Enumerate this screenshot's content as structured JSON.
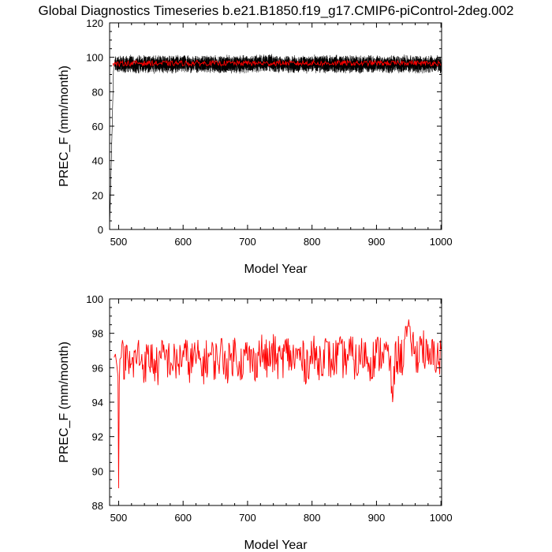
{
  "title": "Global Diagnostics Timeseries b.e21.B1850.f19_g17.CMIP6-piControl-2deg.002",
  "chart_data": [
    {
      "type": "line",
      "xlabel": "Model Year",
      "ylabel": "PREC_F (mm/month)",
      "xlim": [
        486,
        1001
      ],
      "ylim": [
        0,
        120
      ],
      "xticks": [
        500,
        600,
        700,
        800,
        900,
        1000
      ],
      "yticks": [
        0,
        20,
        40,
        60,
        80,
        100,
        120
      ],
      "grid": false,
      "series": [
        {
          "color": "#000000",
          "kind": "monthly",
          "x": [
            486.0,
            490.0,
            492.0,
            494.0,
            500.0,
            530.0,
            560.0,
            600.0,
            650.0,
            700.0,
            725.0,
            750.0,
            800.0,
            850.0,
            900.0,
            950.0,
            1000.0
          ],
          "y": [
            0.0,
            60.0,
            92.0,
            96.0,
            96.0,
            96.0,
            96.0,
            96.0,
            96.0,
            96.0,
            97.0,
            96.0,
            96.0,
            96.0,
            96.0,
            96.0,
            96.0
          ],
          "range_min": 86,
          "range_max": 104
        },
        {
          "color": "#ff0000",
          "kind": "annual",
          "x": [
            491,
            500,
            510,
            520,
            530,
            540,
            550,
            560,
            570,
            580,
            590,
            600,
            610,
            620,
            630,
            640,
            650,
            660,
            670,
            680,
            690,
            700,
            710,
            720,
            730,
            740,
            750,
            760,
            770,
            780,
            790,
            800,
            810,
            820,
            830,
            840,
            850,
            860,
            870,
            880,
            890,
            900,
            910,
            920,
            930,
            940,
            950,
            960,
            970,
            980,
            990,
            1000
          ],
          "y": [
            96.5,
            96.0,
            96.6,
            96.4,
            96.8,
            96.5,
            96.7,
            96.4,
            96.6,
            96.3,
            96.5,
            96.6,
            96.4,
            96.7,
            96.5,
            96.6,
            96.4,
            96.5,
            96.7,
            96.6,
            96.4,
            96.8,
            96.5,
            96.6,
            96.4,
            96.5,
            96.7,
            96.6,
            96.4,
            96.5,
            96.6,
            96.7,
            96.5,
            96.4,
            96.6,
            96.5,
            96.7,
            96.6,
            96.4,
            96.5,
            96.6,
            96.7,
            96.5,
            96.6,
            96.4,
            96.8,
            97.0,
            96.7,
            96.5,
            96.6,
            96.5,
            96.6
          ]
        }
      ]
    },
    {
      "type": "line",
      "xlabel": "Model Year",
      "ylabel": "PREC_F (mm/month)",
      "xlim": [
        486,
        1001
      ],
      "ylim": [
        88,
        100
      ],
      "xticks": [
        500,
        600,
        700,
        800,
        900,
        1000
      ],
      "yticks": [
        88,
        90,
        92,
        94,
        96,
        98,
        100
      ],
      "grid": false,
      "series": [
        {
          "color": "#ff0000",
          "x": [
            493,
            495,
            497,
            499,
            500,
            501,
            502,
            504,
            510,
            520,
            530,
            540,
            550,
            560,
            570,
            580,
            590,
            600,
            610,
            620,
            630,
            640,
            650,
            660,
            670,
            680,
            690,
            700,
            710,
            720,
            730,
            740,
            750,
            760,
            770,
            780,
            790,
            800,
            810,
            820,
            830,
            840,
            850,
            860,
            870,
            880,
            890,
            900,
            910,
            920,
            925,
            930,
            940,
            950,
            960,
            970,
            980,
            990,
            1000
          ],
          "y": [
            96.6,
            96.8,
            96.2,
            95.5,
            89.0,
            95.0,
            96.5,
            96.6,
            96.4,
            96.0,
            96.8,
            96.2,
            96.6,
            96.0,
            96.7,
            96.4,
            96.2,
            96.8,
            96.3,
            96.6,
            96.1,
            96.7,
            96.4,
            96.8,
            96.2,
            96.9,
            96.3,
            96.7,
            96.2,
            97.0,
            96.4,
            96.8,
            96.3,
            96.9,
            96.5,
            96.7,
            96.2,
            96.8,
            96.4,
            96.9,
            96.3,
            96.7,
            96.5,
            96.8,
            96.2,
            96.9,
            96.4,
            96.7,
            97.0,
            96.5,
            94.0,
            96.8,
            96.6,
            98.8,
            96.5,
            97.5,
            96.3,
            96.8,
            96.5
          ],
          "range_min": 94.5,
          "range_max": 98.4
        }
      ]
    }
  ]
}
